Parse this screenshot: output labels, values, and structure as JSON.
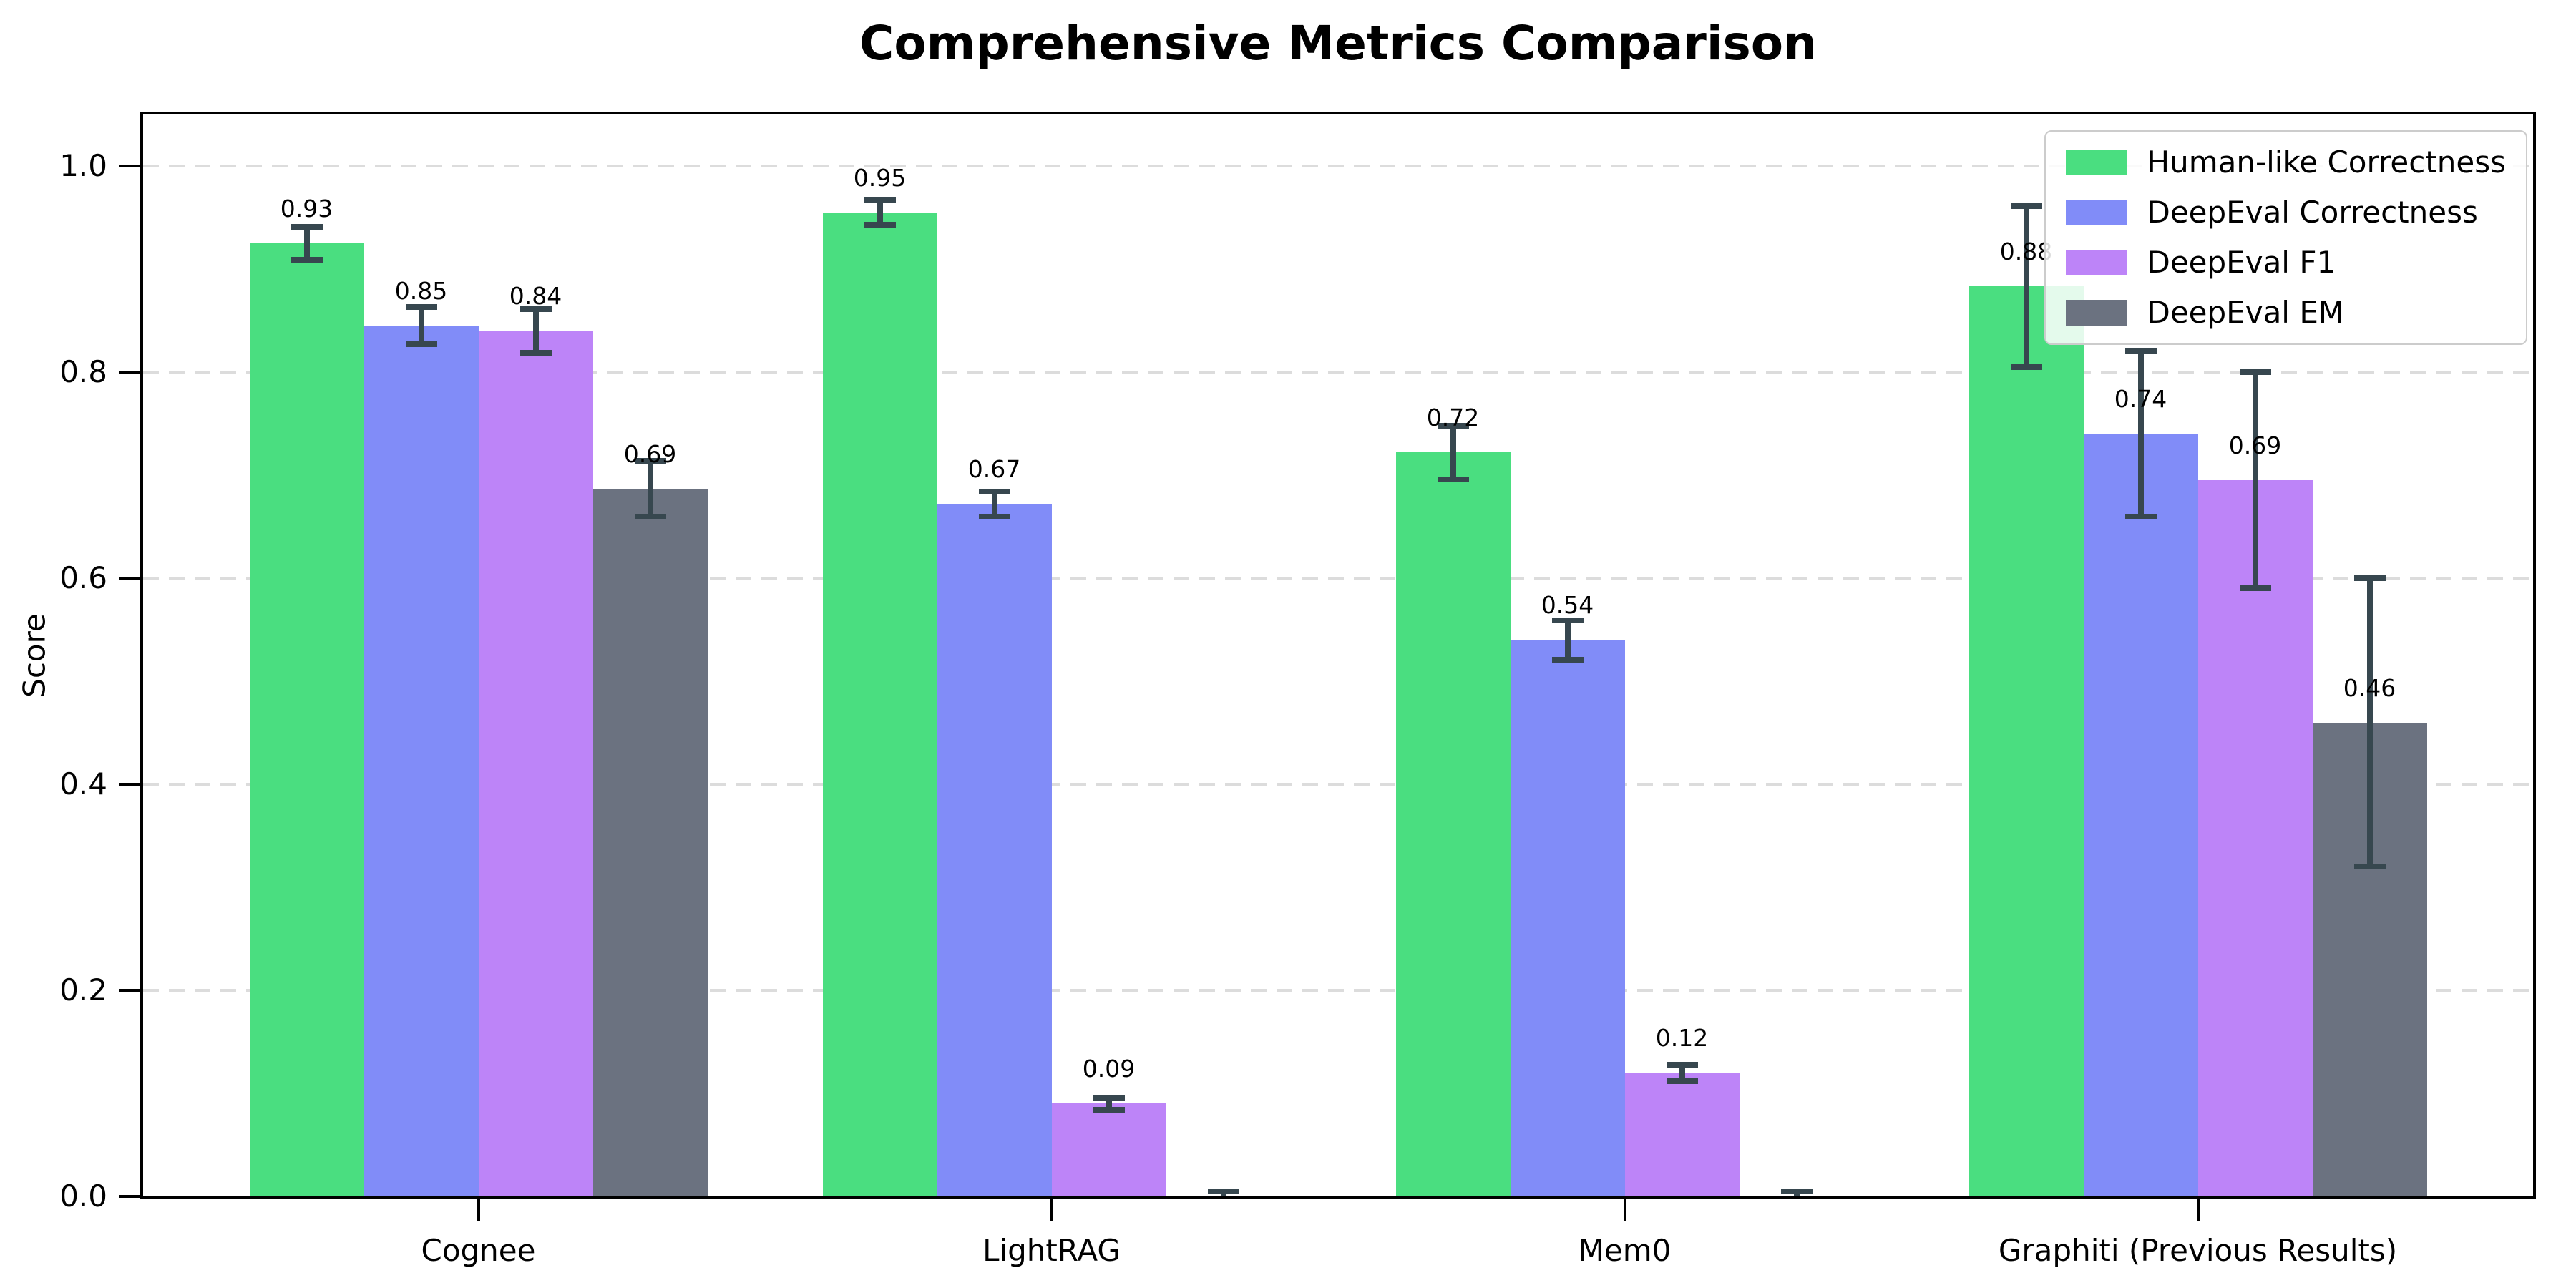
{
  "chart_data": {
    "type": "bar",
    "title": "Comprehensive Metrics Comparison",
    "ylabel": "Score",
    "categories": [
      "Cognee",
      "LightRAG",
      "Mem0",
      "Graphiti (Previous Results)"
    ],
    "series": [
      {
        "name": "Human-like Correctness",
        "color": "#4ade80",
        "values": [
          0.925,
          0.955,
          0.722,
          0.883
        ],
        "errors": [
          0.016,
          0.012,
          0.026,
          0.078
        ],
        "labels": [
          "0.93",
          "0.95",
          "0.72",
          "0.88"
        ]
      },
      {
        "name": "DeepEval Correctness",
        "color": "#818cf8",
        "values": [
          0.845,
          0.672,
          0.54,
          0.74
        ],
        "errors": [
          0.018,
          0.012,
          0.019,
          0.08
        ],
        "labels": [
          "0.85",
          "0.67",
          "0.54",
          "0.74"
        ]
      },
      {
        "name": "DeepEval F1",
        "color": "#bd84f8",
        "values": [
          0.84,
          0.09,
          0.12,
          0.695
        ],
        "errors": [
          0.021,
          0.006,
          0.008,
          0.105
        ],
        "labels": [
          "0.84",
          "0.09",
          "0.12",
          "0.69"
        ]
      },
      {
        "name": "DeepEval EM",
        "color": "#6b7280",
        "values": [
          0.687,
          0.0,
          0.0,
          0.46
        ],
        "errors": [
          0.027,
          0.005,
          0.005,
          0.14
        ],
        "labels": [
          "0.69",
          null,
          null,
          "0.46"
        ]
      }
    ],
    "y_ticks": [
      {
        "value": 0.0,
        "label": "0.0"
      },
      {
        "value": 0.2,
        "label": "0.2"
      },
      {
        "value": 0.4,
        "label": "0.4"
      },
      {
        "value": 0.6,
        "label": "0.6"
      },
      {
        "value": 0.8,
        "label": "0.8"
      },
      {
        "value": 1.0,
        "label": "1.0"
      }
    ],
    "ylim": [
      0,
      1.05
    ],
    "grid": {
      "axis": "y",
      "style": "dashed",
      "color": "#dcdcdc"
    },
    "legend": {
      "position": "upper right"
    },
    "colors": {
      "error_bar": "#37474f",
      "axis": "#000000",
      "background": "#ffffff"
    }
  }
}
